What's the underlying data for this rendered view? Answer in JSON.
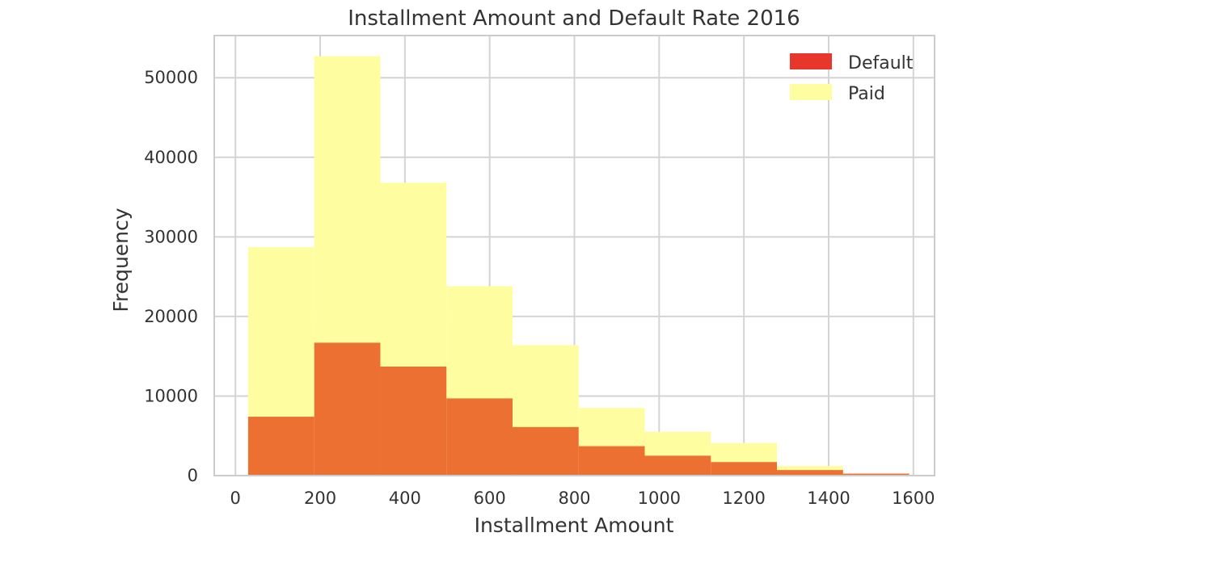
{
  "chart_data": {
    "type": "histogram",
    "title": "Installment Amount and Default Rate 2016",
    "xlabel": "Installment Amount",
    "ylabel": "Frequency",
    "xlim": [
      -50,
      1650
    ],
    "ylim": [
      0,
      55300
    ],
    "xticks": [
      "0",
      "200",
      "400",
      "600",
      "800",
      "1000",
      "1200",
      "1400",
      "1600"
    ],
    "yticks": [
      "0",
      "10000",
      "20000",
      "30000",
      "40000",
      "50000"
    ],
    "grid": true,
    "legend_position": "top-right",
    "bin_edges": [
      30,
      186,
      342,
      498,
      654,
      810,
      966,
      1122,
      1278,
      1434,
      1590
    ],
    "series": [
      {
        "name": "Paid",
        "color": "#fefda0",
        "values": [
          28700,
          52700,
          36800,
          23800,
          16400,
          8500,
          5500,
          4100,
          1200,
          250
        ]
      },
      {
        "name": "Default",
        "color": "#ec7032",
        "legend_color": "#e8372a",
        "values": [
          7400,
          16700,
          13700,
          9700,
          6100,
          3700,
          2500,
          1700,
          700,
          250
        ]
      }
    ]
  }
}
